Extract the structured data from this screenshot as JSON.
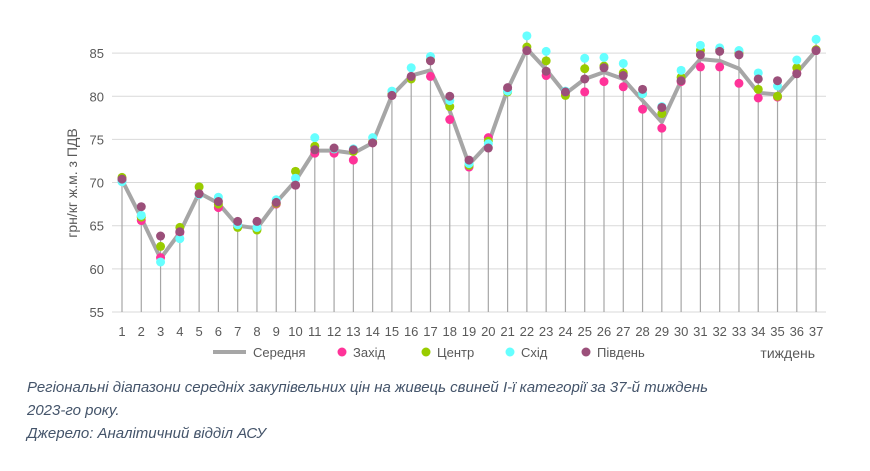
{
  "chart_data": {
    "type": "line",
    "title": "",
    "xlabel": "тиждень",
    "ylabel": "грн/кг ж.м. з ПДВ",
    "ylim": [
      55,
      87
    ],
    "yticks": [
      55,
      60,
      65,
      70,
      75,
      80,
      85
    ],
    "grid": "horizontal",
    "legend": "bottom",
    "x": [
      1,
      2,
      3,
      4,
      5,
      6,
      7,
      8,
      9,
      10,
      11,
      12,
      13,
      14,
      15,
      16,
      17,
      18,
      19,
      20,
      21,
      22,
      23,
      24,
      25,
      26,
      27,
      28,
      29,
      30,
      31,
      32,
      33,
      34,
      35,
      36,
      37
    ],
    "series": [
      {
        "name": "Середня",
        "style": "line",
        "color": "#a6a6a6",
        "values": [
          70.3,
          65.9,
          61.2,
          64.2,
          68.8,
          67.6,
          65.0,
          64.7,
          67.7,
          70.2,
          73.7,
          73.7,
          73.4,
          74.6,
          80.1,
          82.4,
          83.0,
          78.3,
          72.1,
          74.5,
          80.8,
          85.5,
          83.1,
          80.3,
          82.0,
          82.8,
          82.0,
          79.5,
          77.0,
          81.8,
          84.3,
          84.1,
          83.2,
          80.4,
          80.2,
          82.7,
          85.3
        ]
      },
      {
        "name": "Захід",
        "style": "marker",
        "color": "#ff3399",
        "values": [
          70.2,
          65.6,
          61.3,
          64.2,
          68.7,
          67.1,
          65.0,
          64.7,
          67.5,
          69.7,
          73.4,
          73.4,
          72.6,
          74.6,
          80.1,
          82.2,
          82.3,
          77.3,
          71.8,
          75.2,
          80.8,
          85.3,
          82.4,
          80.4,
          80.5,
          81.7,
          81.1,
          78.5,
          76.3,
          81.7,
          83.4,
          83.4,
          81.5,
          79.8,
          79.9,
          82.7,
          85.3
        ]
      },
      {
        "name": "Центр",
        "style": "marker",
        "color": "#99cc00",
        "values": [
          70.6,
          66.0,
          62.6,
          64.8,
          69.5,
          67.5,
          64.8,
          64.5,
          67.6,
          71.3,
          74.2,
          73.9,
          73.6,
          74.7,
          80.2,
          82.0,
          84.2,
          78.8,
          72.0,
          74.8,
          80.5,
          85.7,
          84.1,
          80.1,
          83.2,
          83.5,
          82.7,
          80.3,
          78.0,
          82.2,
          85.3,
          85.4,
          85.0,
          80.8,
          80.0,
          83.3,
          85.4
        ]
      },
      {
        "name": "Схід",
        "style": "marker",
        "color": "#66ffff",
        "values": [
          70.1,
          66.2,
          60.8,
          63.5,
          68.6,
          68.3,
          65.1,
          64.8,
          68.0,
          70.5,
          75.2,
          73.9,
          73.9,
          75.2,
          80.6,
          83.3,
          84.6,
          79.5,
          72.2,
          74.5,
          80.6,
          87.0,
          85.2,
          80.6,
          84.4,
          84.5,
          83.8,
          80.3,
          78.8,
          83.0,
          85.9,
          85.6,
          85.3,
          82.7,
          81.2,
          84.2,
          86.6
        ]
      },
      {
        "name": "Південь",
        "style": "marker",
        "color": "#9b4f7a",
        "values": [
          70.4,
          67.2,
          63.8,
          64.3,
          68.7,
          67.8,
          65.5,
          65.5,
          67.7,
          69.7,
          73.8,
          74.0,
          73.8,
          74.6,
          80.1,
          82.3,
          84.1,
          80.0,
          72.6,
          74.0,
          81.0,
          85.3,
          82.9,
          80.5,
          82.0,
          83.3,
          82.4,
          80.8,
          78.7,
          81.8,
          84.8,
          85.2,
          84.8,
          82.0,
          81.8,
          82.6,
          85.3
        ]
      }
    ]
  },
  "caption": {
    "line1": "Регіональні діапазони середніх закупівельних цін на живець свиней І-ї категорії за 37-й тиждень",
    "line2": "2023-го року.",
    "line3": "Джерело: Аналітичний відділ АСУ"
  }
}
